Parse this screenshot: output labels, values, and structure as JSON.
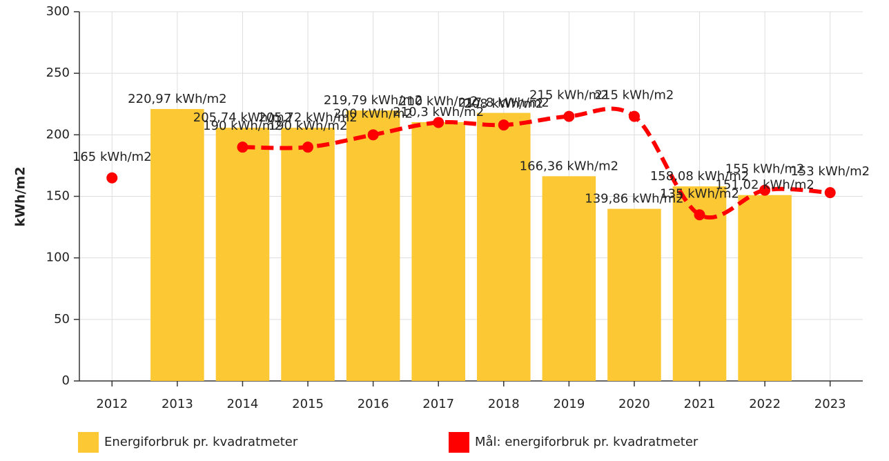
{
  "chart_data": {
    "type": "bar_line",
    "categories": [
      "2012",
      "2013",
      "2014",
      "2015",
      "2016",
      "2017",
      "2018",
      "2019",
      "2020",
      "2021",
      "2022",
      "2023"
    ],
    "series": [
      {
        "name": "Energiforbruk pr. kvadratmeter",
        "type": "bar",
        "color": "#fcc935",
        "values": [
          null,
          220.97,
          205.74,
          205.72,
          219.79,
          210.3,
          217.8,
          166.36,
          139.86,
          158.08,
          151.02,
          null
        ],
        "value_labels": [
          null,
          "220,97 kWh/m2",
          "205,74 kWh/m2",
          "205,72 kWh/m2",
          "219,79 kWh/m2",
          "210,3 kWh/m2",
          "217,8 kWh/m2",
          "166,36 kWh/m2",
          "139,86 kWh/m2",
          "158,08 kWh/m2",
          "151,02 kWh/m2",
          null
        ]
      },
      {
        "name": "Mål: energiforbruk pr. kvadratmeter",
        "type": "line",
        "color": "#ff0000",
        "values": [
          165,
          null,
          190,
          190,
          200,
          210,
          208,
          215,
          215,
          135,
          155,
          153
        ],
        "value_labels": [
          "165 kWh/m2",
          null,
          "190 kWh/m2",
          "190 kWh/m2",
          "200 kWh/m2",
          "210 kWh/m2",
          "208 kWh/m2",
          "215 kWh/m2",
          "215 kWh/m2",
          "135 kWh/m2",
          "155 kWh/m2",
          "153 kWh/m2"
        ]
      }
    ],
    "ylabel": "kWh/m2",
    "ylim": [
      0,
      300
    ],
    "yticks": [
      0,
      50,
      100,
      150,
      200,
      250,
      300
    ],
    "grid": true
  }
}
